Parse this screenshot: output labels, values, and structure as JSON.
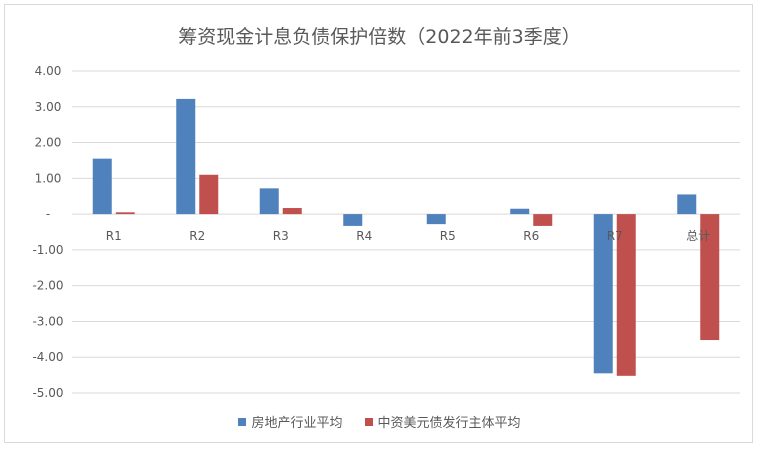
{
  "chart_data": {
    "type": "bar",
    "title": "筹资现金计息负债保护倍数（2022年前3季度）",
    "categories": [
      "R1",
      "R2",
      "R3",
      "R4",
      "R5",
      "R6",
      "R7",
      "总计"
    ],
    "series": [
      {
        "name": "房地产行业平均",
        "color": "#4f81bd",
        "values": [
          1.55,
          3.22,
          0.72,
          -0.33,
          -0.28,
          0.15,
          -4.45,
          0.55
        ]
      },
      {
        "name": "中资美元债发行主体平均",
        "color": "#c0504d",
        "values": [
          0.05,
          1.1,
          0.17,
          0.0,
          0.0,
          -0.33,
          -4.52,
          -3.52
        ]
      }
    ],
    "ylim": [
      -5,
      4
    ],
    "yticks": [
      4,
      3,
      2,
      1,
      0,
      -1,
      -2,
      -3,
      -4,
      -5
    ],
    "ytick_labels": [
      "4.00",
      "3.00",
      "2.00",
      "1.00",
      "-",
      "-1.00",
      "-2.00",
      "-3.00",
      "-4.00",
      "-5.00"
    ],
    "grid": true,
    "legend_position": "bottom"
  }
}
